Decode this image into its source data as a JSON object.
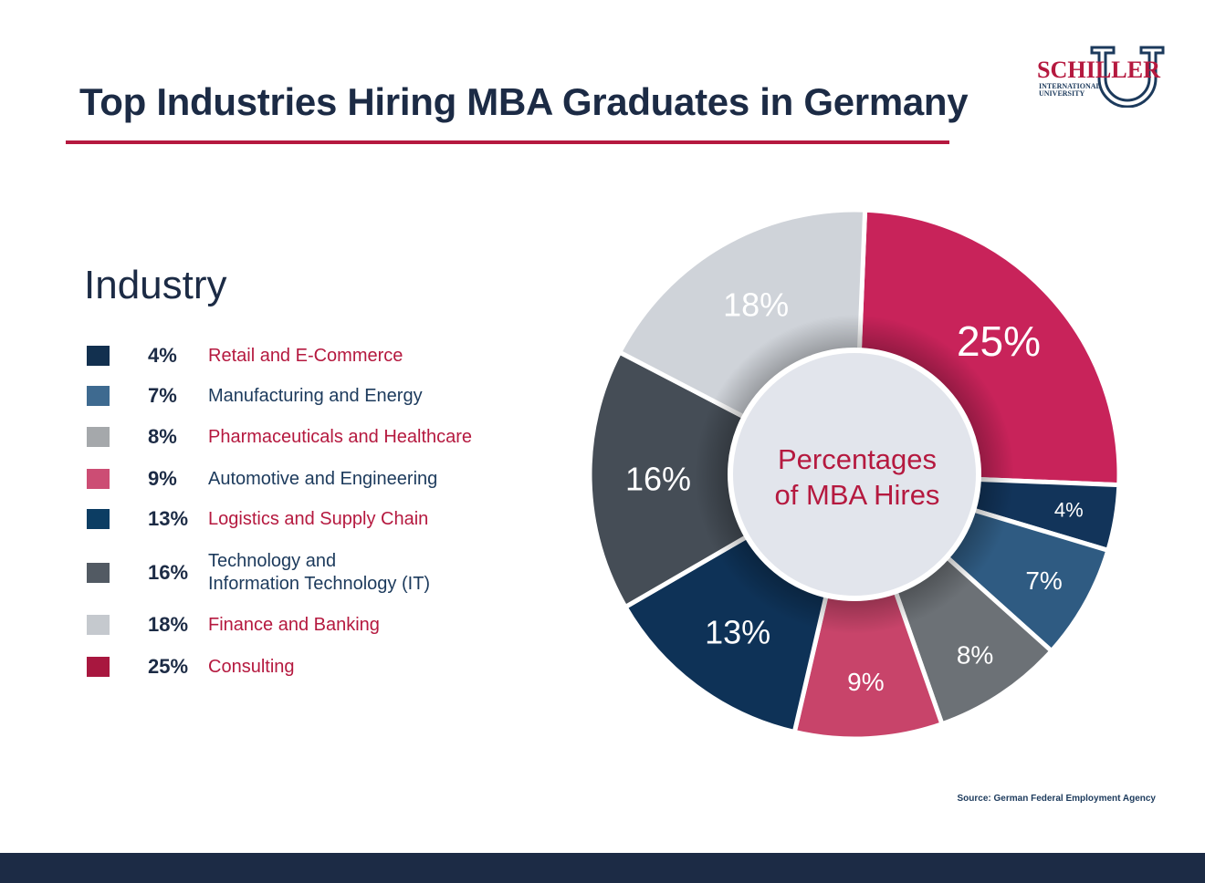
{
  "title": "Top Industries Hiring MBA Graduates in Germany",
  "logo": {
    "name": "SCHILLER",
    "sub1": "INTERNATIONAL",
    "sub2": "UNIVERSITY"
  },
  "colors": {
    "accent": "#b5193f",
    "navy": "#1c2b45"
  },
  "chart_data": {
    "type": "pie",
    "variant": "donut",
    "legend_title": "Industry",
    "center_label": [
      "Percentages",
      "of MBA Hires"
    ],
    "legend_placement": "left",
    "slices": [
      {
        "label": "Consulting",
        "value": 25,
        "display": "25%",
        "color": "#c8235a",
        "legend_color": "#a8173f",
        "label_color": "#b5193f"
      },
      {
        "label": "Retail and E-Commerce",
        "value": 4,
        "display": "4%",
        "color": "#12345a",
        "legend_color": "#12304f",
        "label_color": "#b5193f"
      },
      {
        "label": "Manufacturing and Energy",
        "value": 7,
        "display": "7%",
        "color": "#2f5b82",
        "legend_color": "#3e6a90",
        "label_color": "#1c3a5c"
      },
      {
        "label": "Pharmaceuticals and Healthcare",
        "value": 8,
        "display": "8%",
        "color": "#6c7176",
        "legend_color": "#a5a8ab",
        "label_color": "#b5193f"
      },
      {
        "label": "Automotive and Engineering",
        "value": 9,
        "display": "9%",
        "color": "#c8446a",
        "legend_color": "#cc4d74",
        "label_color": "#1c3a5c"
      },
      {
        "label": "Logistics and Supply Chain",
        "value": 13,
        "display": "13%",
        "color": "#0e3257",
        "legend_color": "#0c3d63",
        "label_color": "#b5193f"
      },
      {
        "label": "Technology and Information Technology (IT)",
        "lines": [
          "Technology and",
          "Information Technology (IT)"
        ],
        "value": 16,
        "display": "16%",
        "color": "#454d56",
        "legend_color": "#525a63",
        "label_color": "#1c3a5c"
      },
      {
        "label": "Finance and Banking",
        "value": 18,
        "display": "18%",
        "color": "#cfd3d9",
        "legend_color": "#c5c9ce",
        "label_color": "#b5193f"
      }
    ],
    "legend_order": [
      1,
      2,
      3,
      4,
      5,
      6,
      7,
      0
    ]
  },
  "source": "Source: German Federal Employment Agency"
}
